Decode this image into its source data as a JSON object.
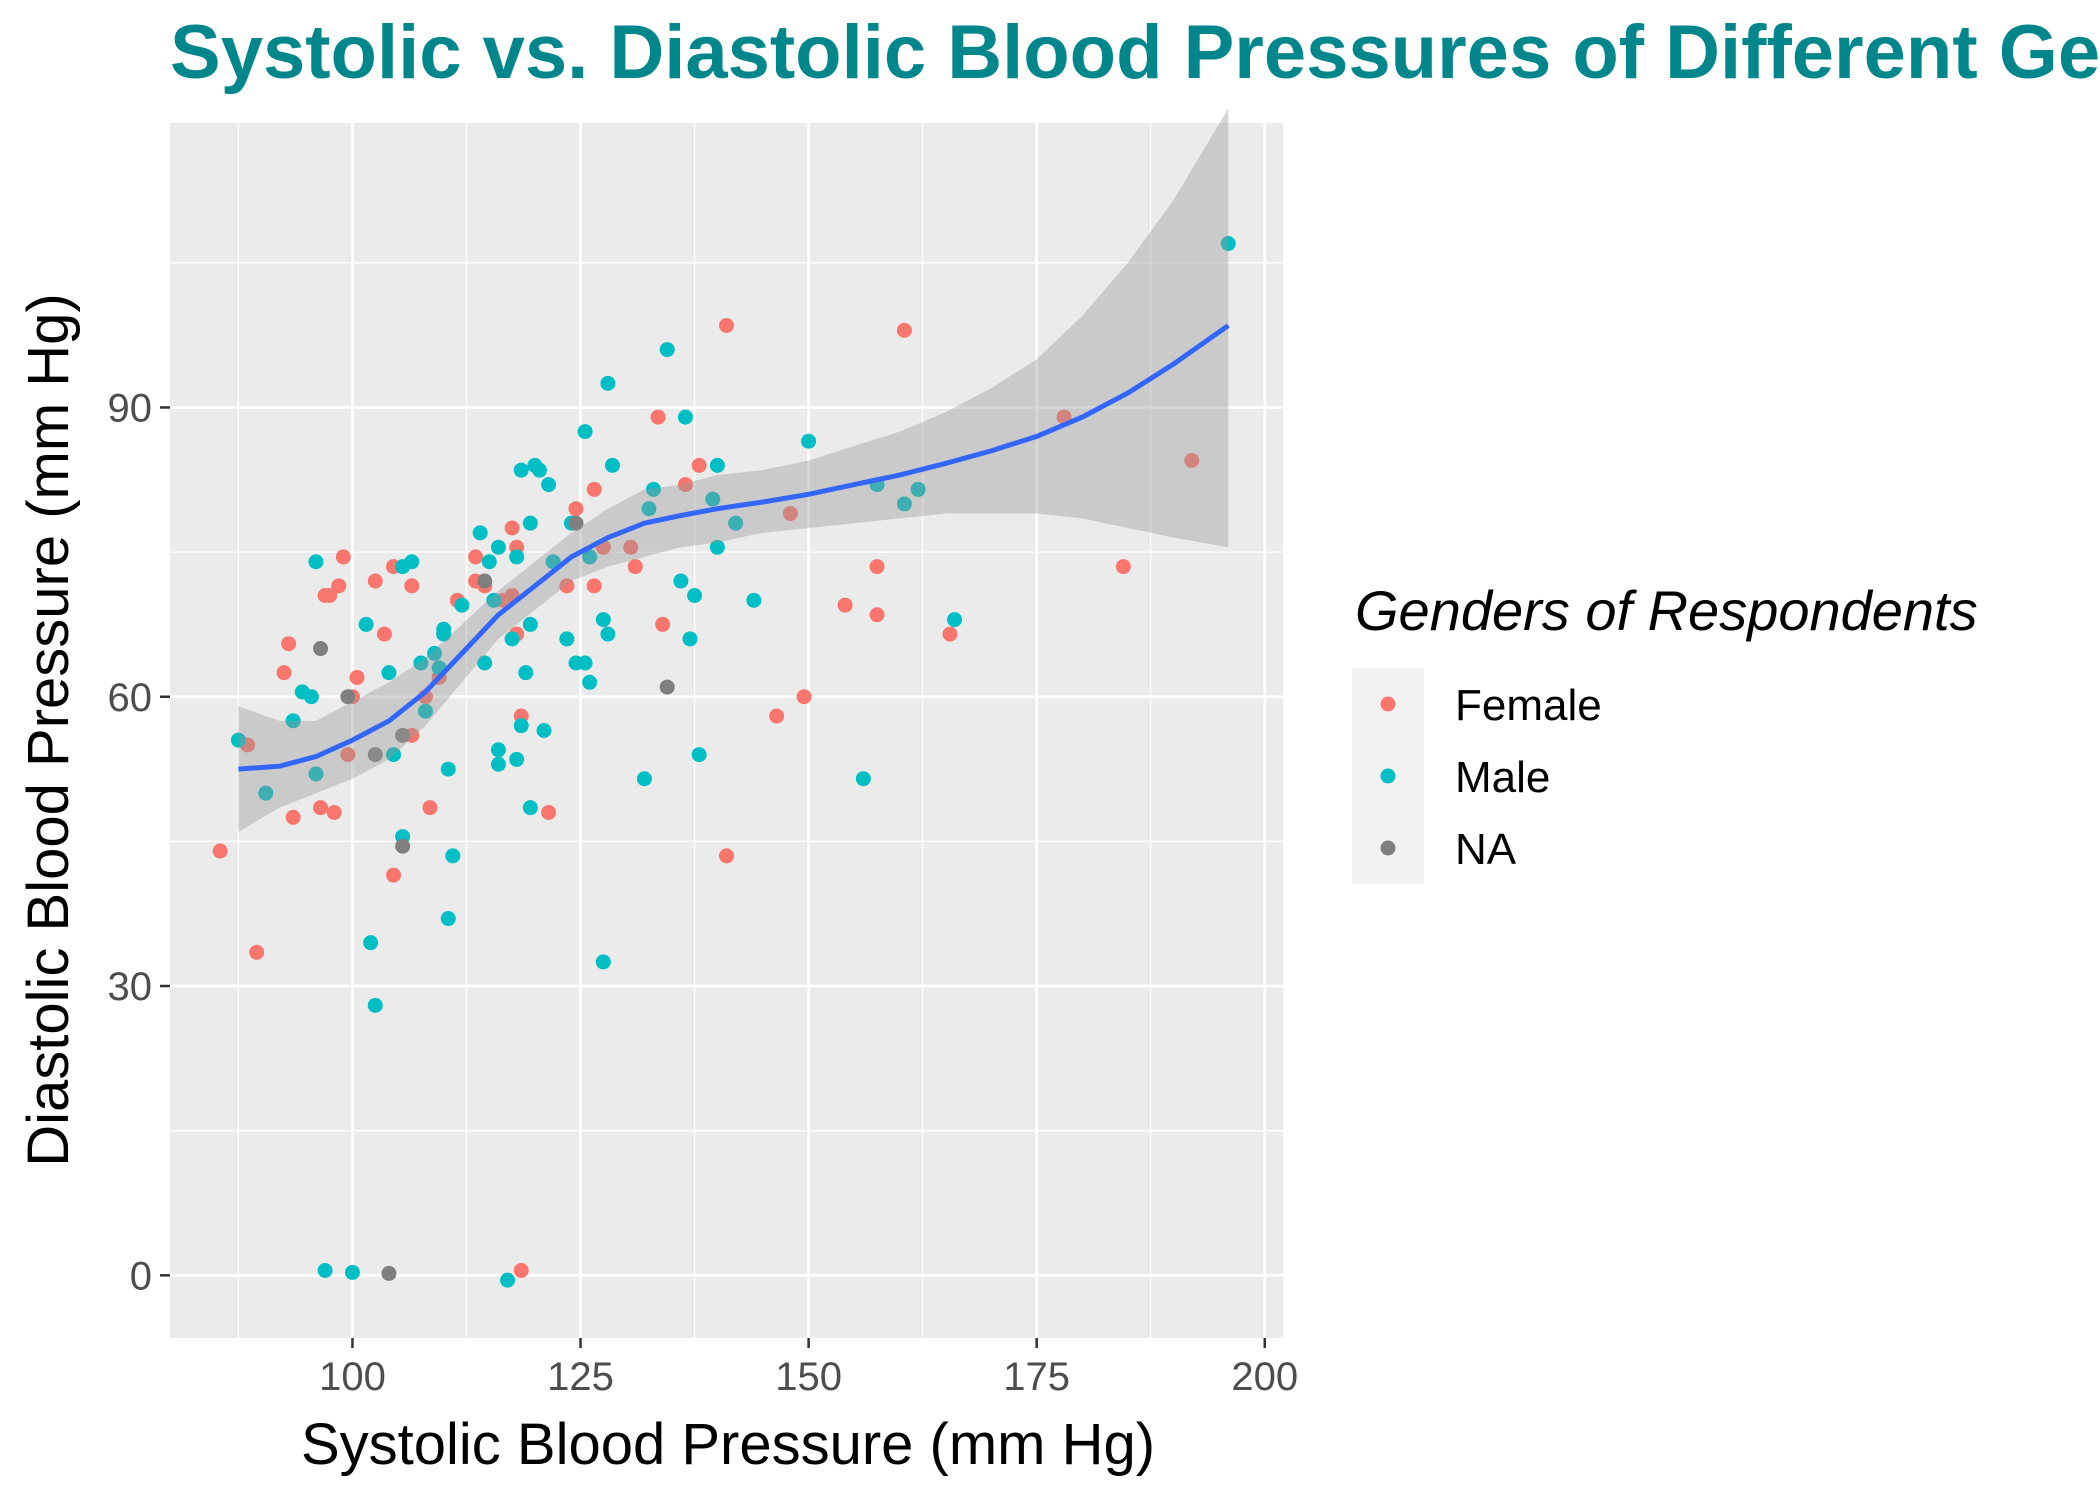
{
  "chart_data": {
    "type": "scatter",
    "title": "Systolic vs. Diastolic Blood Pressures of Different Genders",
    "xlabel": "Systolic Blood Pressure (mm Hg)",
    "ylabel": "Diastolic Blood Pressure (mm Hg)",
    "xlim": [
      80,
      202
    ],
    "ylim": [
      -6.5,
      119.5
    ],
    "x_ticks": [
      100,
      125,
      150,
      175,
      200
    ],
    "x_tick_labels": [
      "100",
      "125",
      "150",
      "175",
      "200"
    ],
    "y_ticks": [
      0,
      30,
      60,
      90
    ],
    "y_tick_labels": [
      "0",
      "30",
      "60",
      "90"
    ],
    "grid": true,
    "legend": {
      "title": "Genders of Respondents",
      "position": "right",
      "entries": [
        "Female",
        "Male",
        "NA"
      ]
    },
    "colors": {
      "Female": "#F8766D",
      "Male": "#00BFC4",
      "NA": "#7F7F7F",
      "smooth": "#3366FF",
      "ribbon": "#999999",
      "panel": "#EBEBEB",
      "title": "#00868B"
    },
    "series": [
      {
        "name": "Female",
        "points": [
          [
            85.5,
            44.0
          ],
          [
            88.5,
            55.0
          ],
          [
            89.5,
            33.5
          ],
          [
            92.5,
            62.5
          ],
          [
            93.0,
            65.5
          ],
          [
            93.5,
            47.5
          ],
          [
            96.5,
            48.5
          ],
          [
            97.0,
            70.5
          ],
          [
            97.5,
            70.5
          ],
          [
            98.0,
            48.0
          ],
          [
            98.5,
            71.5
          ],
          [
            99.0,
            74.5
          ],
          [
            99.5,
            54.0
          ],
          [
            100.0,
            60.0
          ],
          [
            100.5,
            62.0
          ],
          [
            102.5,
            72.0
          ],
          [
            103.5,
            66.5
          ],
          [
            104.5,
            41.5
          ],
          [
            104.5,
            73.5
          ],
          [
            106.5,
            71.5
          ],
          [
            106.5,
            56.0
          ],
          [
            108.0,
            60.0
          ],
          [
            108.5,
            48.5
          ],
          [
            109.5,
            62.0
          ],
          [
            111.5,
            70.0
          ],
          [
            113.5,
            72.0
          ],
          [
            113.5,
            74.5
          ],
          [
            114.5,
            71.5
          ],
          [
            116.5,
            70.0
          ],
          [
            117.5,
            70.5
          ],
          [
            117.5,
            77.5
          ],
          [
            118.0,
            75.5
          ],
          [
            118.0,
            66.5
          ],
          [
            118.5,
            58.0
          ],
          [
            118.5,
            0.5
          ],
          [
            121.5,
            48.0
          ],
          [
            123.5,
            71.5
          ],
          [
            124.5,
            79.5
          ],
          [
            126.0,
            74.5
          ],
          [
            126.5,
            71.5
          ],
          [
            126.5,
            81.5
          ],
          [
            127.5,
            75.5
          ],
          [
            130.5,
            75.5
          ],
          [
            131.0,
            73.5
          ],
          [
            133.5,
            89.0
          ],
          [
            134.0,
            67.5
          ],
          [
            136.5,
            82.0
          ],
          [
            138.0,
            84.0
          ],
          [
            141.0,
            98.5
          ],
          [
            141.0,
            43.5
          ],
          [
            146.5,
            58.0
          ],
          [
            148.0,
            79.0
          ],
          [
            149.5,
            60.0
          ],
          [
            154.0,
            69.5
          ],
          [
            157.5,
            73.5
          ],
          [
            157.5,
            68.5
          ],
          [
            160.5,
            98.0
          ],
          [
            165.5,
            66.5
          ],
          [
            178.0,
            89.0
          ],
          [
            184.5,
            73.5
          ],
          [
            192.0,
            84.5
          ]
        ]
      },
      {
        "name": "Male",
        "points": [
          [
            87.5,
            55.5
          ],
          [
            90.5,
            50.0
          ],
          [
            93.5,
            57.5
          ],
          [
            94.5,
            60.5
          ],
          [
            95.5,
            60.0
          ],
          [
            96.0,
            52.0
          ],
          [
            96.0,
            74.0
          ],
          [
            97.0,
            0.5
          ],
          [
            100.0,
            0.3
          ],
          [
            101.5,
            67.5
          ],
          [
            102.0,
            34.5
          ],
          [
            102.5,
            28.0
          ],
          [
            104.0,
            62.5
          ],
          [
            104.5,
            54.0
          ],
          [
            105.5,
            45.5
          ],
          [
            105.5,
            73.5
          ],
          [
            106.5,
            74.0
          ],
          [
            107.5,
            63.5
          ],
          [
            108.0,
            58.5
          ],
          [
            109.0,
            64.5
          ],
          [
            109.5,
            63.0
          ],
          [
            110.0,
            66.5
          ],
          [
            110.0,
            67.0
          ],
          [
            110.5,
            52.5
          ],
          [
            110.5,
            37.0
          ],
          [
            111.0,
            43.5
          ],
          [
            112.0,
            69.5
          ],
          [
            114.0,
            77.0
          ],
          [
            114.5,
            63.5
          ],
          [
            115.0,
            74.0
          ],
          [
            115.5,
            70.0
          ],
          [
            116.0,
            75.5
          ],
          [
            116.0,
            54.5
          ],
          [
            116.0,
            53.0
          ],
          [
            117.0,
            -0.5
          ],
          [
            117.5,
            66.0
          ],
          [
            118.0,
            74.5
          ],
          [
            118.0,
            53.5
          ],
          [
            118.5,
            83.5
          ],
          [
            118.5,
            57.0
          ],
          [
            119.0,
            62.5
          ],
          [
            119.5,
            67.5
          ],
          [
            119.5,
            78.0
          ],
          [
            119.5,
            48.5
          ],
          [
            120.0,
            84.0
          ],
          [
            120.5,
            83.5
          ],
          [
            121.0,
            56.5
          ],
          [
            121.5,
            82.0
          ],
          [
            122.0,
            74.0
          ],
          [
            123.5,
            66.0
          ],
          [
            124.0,
            78.0
          ],
          [
            124.5,
            63.5
          ],
          [
            125.5,
            63.5
          ],
          [
            125.5,
            87.5
          ],
          [
            126.0,
            61.5
          ],
          [
            126.0,
            74.5
          ],
          [
            127.5,
            32.5
          ],
          [
            127.5,
            68.0
          ],
          [
            128.0,
            66.5
          ],
          [
            128.0,
            92.5
          ],
          [
            128.5,
            84.0
          ],
          [
            132.0,
            51.5
          ],
          [
            132.5,
            79.5
          ],
          [
            133.0,
            81.5
          ],
          [
            134.5,
            96.0
          ],
          [
            136.0,
            72.0
          ],
          [
            136.5,
            89.0
          ],
          [
            137.0,
            66.0
          ],
          [
            137.5,
            70.5
          ],
          [
            138.0,
            54.0
          ],
          [
            139.5,
            80.5
          ],
          [
            140.0,
            84.0
          ],
          [
            140.0,
            75.5
          ],
          [
            142.0,
            78.0
          ],
          [
            144.0,
            70.0
          ],
          [
            150.0,
            86.5
          ],
          [
            156.0,
            51.5
          ],
          [
            157.5,
            82.0
          ],
          [
            160.5,
            80.0
          ],
          [
            162.0,
            81.5
          ],
          [
            166.0,
            68.0
          ],
          [
            196.0,
            107.0
          ]
        ]
      },
      {
        "name": "NA",
        "points": [
          [
            96.5,
            65.0
          ],
          [
            99.5,
            60.0
          ],
          [
            102.5,
            54.0
          ],
          [
            104.0,
            0.2
          ],
          [
            105.5,
            44.5
          ],
          [
            105.5,
            56.0
          ],
          [
            114.5,
            72.0
          ],
          [
            124.5,
            78.0
          ],
          [
            134.5,
            61.0
          ]
        ]
      }
    ],
    "smooth": {
      "x": [
        87.5,
        92,
        96,
        100,
        104,
        108,
        112,
        116,
        120,
        124,
        128,
        132,
        136,
        140,
        145,
        150,
        155,
        160,
        165,
        170,
        175,
        180,
        185,
        190,
        196
      ],
      "y": [
        52.5,
        52.8,
        53.8,
        55.5,
        57.5,
        60.5,
        64.5,
        68.5,
        71.5,
        74.5,
        76.5,
        78.0,
        78.8,
        79.5,
        80.2,
        81.0,
        82.0,
        83.0,
        84.2,
        85.5,
        87.0,
        89.0,
        91.5,
        94.5,
        98.5
      ],
      "lower": [
        46.0,
        48.5,
        50.0,
        51.5,
        53.5,
        57.0,
        61.5,
        66.0,
        69.0,
        72.0,
        73.5,
        74.5,
        75.5,
        76.0,
        77.0,
        77.5,
        78.0,
        78.5,
        79.0,
        79.0,
        79.0,
        78.5,
        77.5,
        76.5,
        75.5
      ],
      "upper": [
        59.0,
        57.5,
        57.5,
        59.5,
        61.5,
        64.0,
        67.5,
        71.0,
        74.0,
        77.0,
        79.5,
        81.5,
        82.0,
        83.0,
        83.5,
        84.5,
        86.0,
        87.5,
        89.5,
        92.0,
        95.0,
        99.5,
        105.0,
        111.5,
        121.0
      ]
    }
  }
}
